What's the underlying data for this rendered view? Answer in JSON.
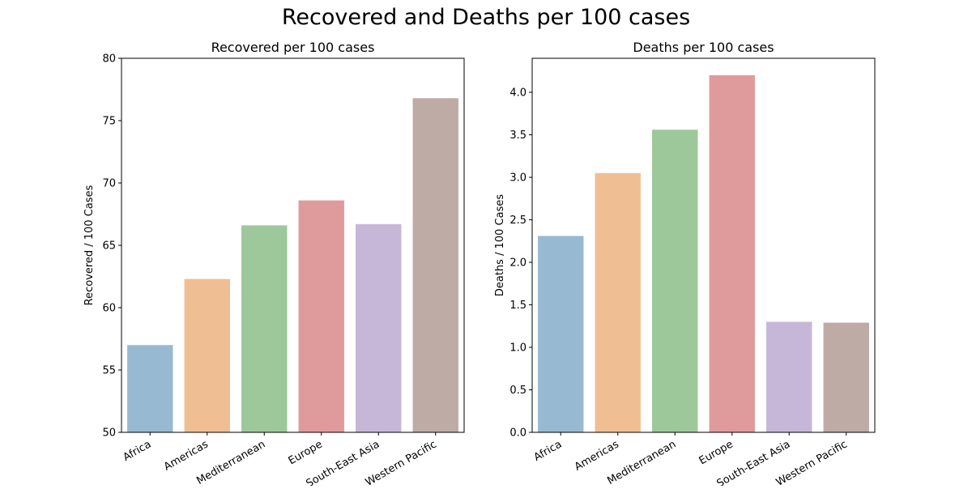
{
  "figure": {
    "suptitle": "Recovered and Deaths per 100 cases"
  },
  "chart_data": [
    {
      "type": "bar",
      "title": "Recovered per 100 cases",
      "xlabel": "",
      "ylabel": "Recovered / 100 Cases",
      "categories": [
        "Africa",
        "Americas",
        "Mediterranean",
        "Europe",
        "South-East Asia",
        "Western Pacific"
      ],
      "values": [
        57.0,
        62.3,
        66.6,
        68.6,
        66.7,
        76.8
      ],
      "ylim": [
        50,
        80
      ],
      "yticks": [
        "50",
        "55",
        "60",
        "65",
        "70",
        "75",
        "80"
      ],
      "colors": [
        "#98b9d2",
        "#efbf93",
        "#9dc899",
        "#df9b9c",
        "#c6b7d8",
        "#bfaba5"
      ],
      "grid": false,
      "legend": "none"
    },
    {
      "type": "bar",
      "title": "Deaths per 100 cases",
      "xlabel": "",
      "ylabel": "Deaths / 100 Cases",
      "categories": [
        "Africa",
        "Americas",
        "Mediterranean",
        "Europe",
        "South-East Asia",
        "Western Pacific"
      ],
      "values": [
        2.31,
        3.05,
        3.56,
        4.2,
        1.3,
        1.29
      ],
      "ylim": [
        0,
        4.4
      ],
      "yticks": [
        "0.0",
        "0.5",
        "1.0",
        "1.5",
        "2.0",
        "2.5",
        "3.0",
        "3.5",
        "4.0"
      ],
      "colors": [
        "#98b9d2",
        "#efbf93",
        "#9dc899",
        "#df9b9c",
        "#c6b7d8",
        "#bfaba5"
      ],
      "grid": false,
      "legend": "none"
    }
  ]
}
